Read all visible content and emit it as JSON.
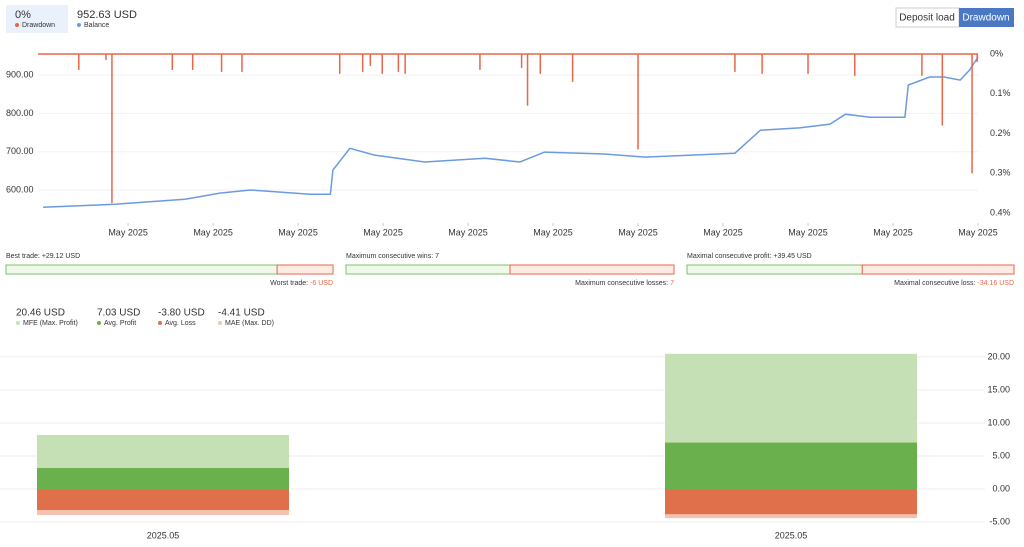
{
  "header": {
    "drawdown": {
      "value": "0%",
      "label": "Drawdown"
    },
    "balance": {
      "value": "952.63 USD",
      "label": "Balance"
    },
    "buttons": [
      "Deposit load",
      "Drawdown"
    ]
  },
  "chart_data": [
    {
      "type": "line",
      "series": [
        {
          "name": "Balance",
          "color": "#6a9be0",
          "x": [
            0,
            8.5,
            16.7,
            20.8,
            24.4,
            31.4,
            33.8,
            34.1,
            36.1,
            39,
            44.9,
            52,
            56.1,
            59,
            66,
            70.8,
            81.4,
            84.4,
            89,
            92.6,
            94.4,
            97.3,
            101.4,
            101.8,
            104.3,
            106,
            107.9,
            109,
            110
          ],
          "values": [
            555,
            563,
            576,
            592,
            600,
            589,
            589,
            652,
            709,
            691,
            673,
            683,
            673,
            699,
            694,
            686,
            696,
            756,
            762,
            772,
            798,
            790,
            790,
            874,
            895,
            895,
            887,
            913,
            947
          ]
        },
        {
          "name": "Drawdown",
          "color": "#e8664a",
          "axis": "y2",
          "x": [
            4.2,
            7.4,
            8.1,
            15.2,
            17.6,
            21.0,
            23.4,
            34.9,
            37.6,
            38.5,
            39.9,
            41.8,
            42.6,
            51.4,
            56.3,
            57.0,
            58.5,
            62.3,
            70.0,
            81.4,
            84.6,
            90.0,
            95.5,
            103.4,
            105.8,
            109.3,
            109.9
          ],
          "values": [
            0.04,
            0.015,
            0.375,
            0.04,
            0.04,
            0.045,
            0.045,
            0.05,
            0.045,
            0.03,
            0.05,
            0.045,
            0.05,
            0.04,
            0.035,
            0.13,
            0.05,
            0.07,
            0.24,
            0.045,
            0.05,
            0.05,
            0.055,
            0.055,
            0.18,
            0.3,
            0.02
          ]
        }
      ],
      "xlim": [
        -0.6,
        110
      ],
      "xticks": [
        {
          "value": 10,
          "label": "May 2025"
        },
        {
          "value": 20,
          "label": "May 2025"
        },
        {
          "value": 30,
          "label": "May 2025"
        },
        {
          "value": 40,
          "label": "May 2025"
        },
        {
          "value": 50,
          "label": "May 2025"
        },
        {
          "value": 60,
          "label": "May 2025"
        },
        {
          "value": 70,
          "label": "May 2025"
        },
        {
          "value": 80,
          "label": "May 2025"
        },
        {
          "value": 90,
          "label": "May 2025"
        },
        {
          "value": 100,
          "label": "May 2025"
        },
        {
          "value": 110,
          "label": "May 2025"
        }
      ],
      "ylim": [
        540,
        955
      ],
      "yticks": [
        {
          "value": 600,
          "label": "600.00"
        },
        {
          "value": 700,
          "label": "700.00"
        },
        {
          "value": 800,
          "label": "800.00"
        },
        {
          "value": 900,
          "label": "900.00"
        }
      ],
      "y2lim": [
        0,
        0.4
      ],
      "y2_inverted": true,
      "y2ticks": [
        {
          "value": 0,
          "label": "0%"
        },
        {
          "value": 0.1,
          "label": "0.1%"
        },
        {
          "value": 0.2,
          "label": "0.2%"
        },
        {
          "value": 0.3,
          "label": "0.3%"
        },
        {
          "value": 0.4,
          "label": "0.4%"
        }
      ]
    },
    {
      "type": "bar",
      "overlay": true,
      "categories": [
        "2025.05",
        "2025.05"
      ],
      "series": [
        {
          "name": "MFE (Max. Profit)",
          "color": "#c5e0b4",
          "values": [
            8.18,
            20.46
          ],
          "legend_label": "20.46 USD"
        },
        {
          "name": "Avg. Profit",
          "color": "#6ab04c",
          "values": [
            3.18,
            7.03
          ],
          "legend_label": "7.03 USD"
        },
        {
          "name": "MAE (Max. DD)",
          "color": "#f4c2b0",
          "values": [
            -3.94,
            -4.41
          ],
          "legend_label": "-4.41 USD"
        },
        {
          "name": "Avg. Loss",
          "color": "#e0704c",
          "values": [
            -3.18,
            -3.8
          ],
          "legend_label": "-3.80 USD"
        }
      ],
      "ylim": [
        -6.2,
        21.8
      ],
      "yticks": [
        {
          "value": -5,
          "label": "-5.00"
        },
        {
          "value": 0,
          "label": "0.00"
        },
        {
          "value": 5,
          "label": "5.00"
        },
        {
          "value": 10,
          "label": "10.00"
        },
        {
          "value": 15,
          "label": "15.00"
        },
        {
          "value": 20,
          "label": "20.00"
        }
      ],
      "grid": true
    }
  ],
  "stats": [
    {
      "good": {
        "name": "Best trade:",
        "value": 29.12,
        "value_label": "+29.12 USD"
      },
      "bad": {
        "name": "Worst trade:",
        "value": -6,
        "value_label": "-6 USD"
      }
    },
    {
      "good": {
        "name": "Maximum consecutive wins:",
        "value": 7
      },
      "bad": {
        "name": "Maximum consecutive losses:",
        "value": 7
      }
    },
    {
      "good": {
        "name": "Maximal consecutive profit:",
        "value": 39.45,
        "value_label": "+39.45 USD"
      },
      "bad": {
        "name": "Maximal consecutive loss:",
        "value": -34.16,
        "value_label": "-34.16 USD"
      }
    }
  ]
}
